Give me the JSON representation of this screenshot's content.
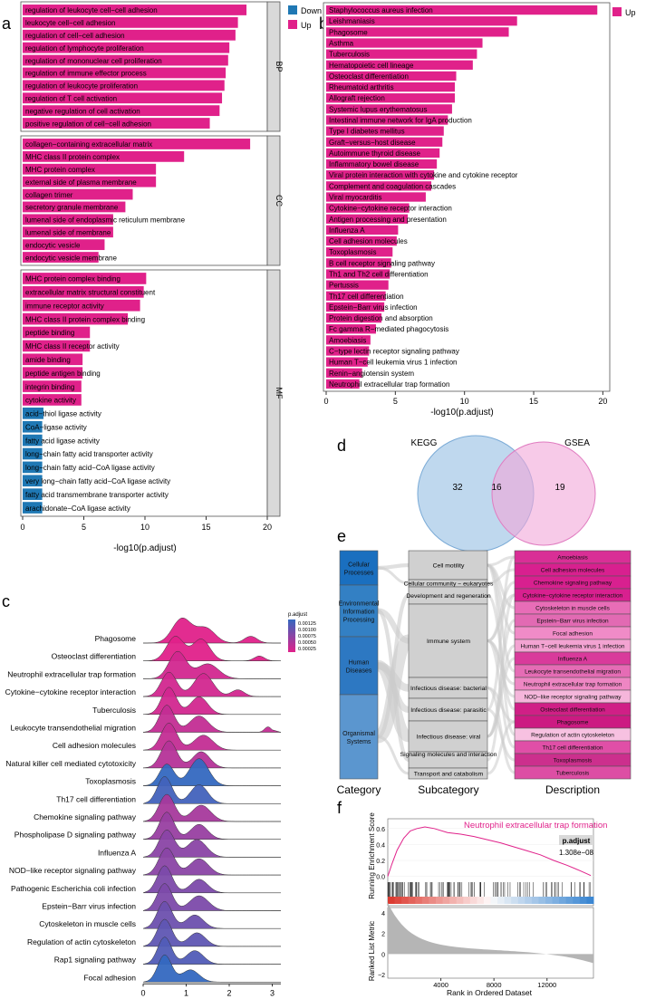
{
  "colors": {
    "down": "#1f78b4",
    "up": "#e0218a",
    "strip": "#d9d9d9",
    "kegg": "#a9cbe8",
    "gsea": "#f2a6d8"
  },
  "panel_labels": {
    "a": "a",
    "b": "b",
    "c": "c",
    "d": "d",
    "e": "e",
    "f": "f"
  },
  "chart_data": [
    {
      "id": "go_bar",
      "type": "bar",
      "title": "",
      "xlabel": "-log10(p.adjust)",
      "xlim": [
        0,
        20
      ],
      "xticks": [
        0,
        5,
        10,
        15,
        20
      ],
      "legend": {
        "placement": "top-right",
        "entries": [
          "Down",
          "Up"
        ]
      },
      "facets": [
        {
          "name": "BP",
          "terms": [
            {
              "label": "regulation of leukocyte cell−cell adhesion",
              "value": 18.3,
              "dir": "Up"
            },
            {
              "label": "leukocyte cell−cell adhesion",
              "value": 17.6,
              "dir": "Up"
            },
            {
              "label": "regulation of cell−cell adhesion",
              "value": 17.4,
              "dir": "Up"
            },
            {
              "label": "regulation of lymphocyte proliferation",
              "value": 16.9,
              "dir": "Up"
            },
            {
              "label": "regulation of mononuclear cell proliferation",
              "value": 16.8,
              "dir": "Up"
            },
            {
              "label": "regulation of immune effector process",
              "value": 16.6,
              "dir": "Up"
            },
            {
              "label": "regulation of leukocyte proliferation",
              "value": 16.5,
              "dir": "Up"
            },
            {
              "label": "regulation of T cell activation",
              "value": 16.3,
              "dir": "Up"
            },
            {
              "label": "negative regulation of cell activation",
              "value": 16.1,
              "dir": "Up"
            },
            {
              "label": "positive regulation of cell−cell adhesion",
              "value": 15.3,
              "dir": "Up"
            }
          ]
        },
        {
          "name": "CC",
          "terms": [
            {
              "label": "collagen−containing extracellular matrix",
              "value": 18.6,
              "dir": "Up"
            },
            {
              "label": "MHC class II protein complex",
              "value": 13.2,
              "dir": "Up"
            },
            {
              "label": "MHC protein complex",
              "value": 10.9,
              "dir": "Up"
            },
            {
              "label": "external side of plasma membrane",
              "value": 10.9,
              "dir": "Up"
            },
            {
              "label": "collagen trimer",
              "value": 9.0,
              "dir": "Up"
            },
            {
              "label": "secretory granule membrane",
              "value": 8.4,
              "dir": "Up"
            },
            {
              "label": "lumenal side of endoplasmic reticulum membrane",
              "value": 7.4,
              "dir": "Up"
            },
            {
              "label": "lumenal side of membrane",
              "value": 7.4,
              "dir": "Up"
            },
            {
              "label": "endocytic vesicle",
              "value": 6.7,
              "dir": "Up"
            },
            {
              "label": "endocytic vesicle membrane",
              "value": 6.2,
              "dir": "Up"
            }
          ]
        },
        {
          "name": "MF",
          "terms": [
            {
              "label": "MHC protein complex binding",
              "value": 10.1,
              "dir": "Up"
            },
            {
              "label": "extracellular matrix structural constituent",
              "value": 9.9,
              "dir": "Up"
            },
            {
              "label": "immune receptor activity",
              "value": 9.6,
              "dir": "Up"
            },
            {
              "label": "MHC class II protein complex binding",
              "value": 8.6,
              "dir": "Up"
            },
            {
              "label": "peptide binding",
              "value": 5.5,
              "dir": "Up"
            },
            {
              "label": "MHC class II receptor activity",
              "value": 5.5,
              "dir": "Up"
            },
            {
              "label": "amide binding",
              "value": 4.9,
              "dir": "Up"
            },
            {
              "label": "peptide antigen binding",
              "value": 4.9,
              "dir": "Up"
            },
            {
              "label": "integrin binding",
              "value": 4.8,
              "dir": "Up"
            },
            {
              "label": "cytokine activity",
              "value": 4.8,
              "dir": "Up"
            },
            {
              "label": "acid−thiol ligase activity",
              "value": 1.7,
              "dir": "Down"
            },
            {
              "label": "CoA−ligase activity",
              "value": 1.6,
              "dir": "Down"
            },
            {
              "label": "fatty acid ligase activity",
              "value": 1.6,
              "dir": "Down"
            },
            {
              "label": "long−chain fatty acid transporter activity",
              "value": 1.6,
              "dir": "Down"
            },
            {
              "label": "long−chain fatty acid−CoA ligase activity",
              "value": 1.6,
              "dir": "Down"
            },
            {
              "label": "very long−chain fatty acid−CoA ligase activity",
              "value": 1.6,
              "dir": "Down"
            },
            {
              "label": "fatty acid transmembrane transporter activity",
              "value": 1.6,
              "dir": "Down"
            },
            {
              "label": "arachidonate−CoA ligase activity",
              "value": 1.6,
              "dir": "Down"
            }
          ]
        }
      ]
    },
    {
      "id": "kegg_bar",
      "type": "bar",
      "xlabel": "-log10(p.adjust)",
      "xlim": [
        0,
        20
      ],
      "xticks": [
        0,
        5,
        10,
        15,
        20
      ],
      "legend": {
        "placement": "top-right",
        "entries": [
          "Up"
        ]
      },
      "terms": [
        {
          "label": "Staphylococcus aureus infection",
          "value": 19.6
        },
        {
          "label": "Leishmaniasis",
          "value": 13.8
        },
        {
          "label": "Phagosome",
          "value": 13.2
        },
        {
          "label": "Asthma",
          "value": 11.3
        },
        {
          "label": "Tuberculosis",
          "value": 10.9
        },
        {
          "label": "Hematopoietic cell lineage",
          "value": 10.6
        },
        {
          "label": "Osteoclast differentiation",
          "value": 9.4
        },
        {
          "label": "Rheumatoid arthritis",
          "value": 9.3
        },
        {
          "label": "Allograft rejection",
          "value": 9.3
        },
        {
          "label": "Systemic lupus erythematosus",
          "value": 9.1
        },
        {
          "label": "Intestinal immune network for IgA production",
          "value": 8.8
        },
        {
          "label": "Type I diabetes mellitus",
          "value": 8.5
        },
        {
          "label": "Graft−versus−host disease",
          "value": 8.4
        },
        {
          "label": "Autoimmune thyroid disease",
          "value": 8.2
        },
        {
          "label": "Inflammatory bowel disease",
          "value": 8.0
        },
        {
          "label": "Viral protein interaction with cytokine and cytokine receptor",
          "value": 7.8
        },
        {
          "label": "Complement and coagulation cascades",
          "value": 7.6
        },
        {
          "label": "Viral myocarditis",
          "value": 7.2
        },
        {
          "label": "Cytokine−cytokine receptor interaction",
          "value": 6.0
        },
        {
          "label": "Antigen processing and presentation",
          "value": 5.9
        },
        {
          "label": "Influenza A",
          "value": 5.2
        },
        {
          "label": "Cell adhesion molecules",
          "value": 5.1
        },
        {
          "label": "Toxoplasmosis",
          "value": 4.8
        },
        {
          "label": "B cell receptor signaling pathway",
          "value": 4.7
        },
        {
          "label": "Th1 and Th2 cell differentiation",
          "value": 4.6
        },
        {
          "label": "Pertussis",
          "value": 4.5
        },
        {
          "label": "Th17 cell differentiation",
          "value": 4.3
        },
        {
          "label": "Epstein−Barr virus infection",
          "value": 4.2
        },
        {
          "label": "Protein digestion and absorption",
          "value": 4.0
        },
        {
          "label": "Fc gamma R−mediated phagocytosis",
          "value": 3.6
        },
        {
          "label": "Amoebiasis",
          "value": 3.2
        },
        {
          "label": "C−type lectin receptor signaling pathway",
          "value": 3.1
        },
        {
          "label": "Human T−cell leukemia virus 1 infection",
          "value": 3.0
        },
        {
          "label": "Renin−angiotensin system",
          "value": 2.6
        },
        {
          "label": "Neutrophil extracellular trap formation",
          "value": 2.4
        }
      ]
    },
    {
      "id": "ridge",
      "type": "area",
      "xlim": [
        0,
        3.2
      ],
      "xticks": [
        0,
        1,
        2,
        3
      ],
      "legend": {
        "title": "p.adjust",
        "ticks": [
          "0.00125",
          "0.00100",
          "0.00075",
          "0.00050",
          "0.00025"
        ],
        "placement": "top-right"
      },
      "rows": [
        {
          "label": "Phagosome",
          "peaks": [
            [
              0.9,
              0.9,
              0.22
            ],
            [
              1.45,
              0.55,
              0.22
            ],
            [
              2.5,
              0.25,
              0.15
            ]
          ],
          "p": 0.0001
        },
        {
          "label": "Osteoclast differentiation",
          "peaks": [
            [
              0.75,
              0.9,
              0.2
            ],
            [
              1.35,
              0.8,
              0.2
            ],
            [
              2.7,
              0.18,
              0.12
            ]
          ],
          "p": 0.0001
        },
        {
          "label": "Neutrophil extracellular trap formation",
          "peaks": [
            [
              0.8,
              1.0,
              0.2
            ],
            [
              1.5,
              0.55,
              0.25
            ]
          ],
          "p": 0.0002
        },
        {
          "label": "Cytokine−cytokine receptor interaction",
          "peaks": [
            [
              0.6,
              0.9,
              0.18
            ],
            [
              1.4,
              0.85,
              0.22
            ],
            [
              2.2,
              0.25,
              0.15
            ]
          ],
          "p": 0.0002
        },
        {
          "label": "Tuberculosis",
          "peaks": [
            [
              0.6,
              1.0,
              0.17
            ],
            [
              1.3,
              0.65,
              0.2
            ]
          ],
          "p": 0.0002
        },
        {
          "label": "Leukocyte transendothelial migration",
          "peaks": [
            [
              0.55,
              1.0,
              0.17
            ],
            [
              1.3,
              0.6,
              0.22
            ],
            [
              2.9,
              0.2,
              0.08
            ]
          ],
          "p": 0.0003
        },
        {
          "label": "Cell adhesion molecules",
          "peaks": [
            [
              0.6,
              1.0,
              0.18
            ],
            [
              1.4,
              0.55,
              0.22
            ]
          ],
          "p": 0.0003
        },
        {
          "label": "Natural killer cell mediated cytotoxicity",
          "peaks": [
            [
              0.6,
              1.0,
              0.18
            ],
            [
              1.35,
              0.6,
              0.2
            ]
          ],
          "p": 0.0004
        },
        {
          "label": "Toxoplasmosis",
          "peaks": [
            [
              0.55,
              0.8,
              0.17
            ],
            [
              1.3,
              1.0,
              0.22
            ]
          ],
          "p": 0.0013
        },
        {
          "label": "Th17 cell differentiation",
          "peaks": [
            [
              0.5,
              1.0,
              0.17
            ],
            [
              1.3,
              0.7,
              0.2
            ]
          ],
          "p": 0.0012
        },
        {
          "label": "Chemokine signaling pathway",
          "peaks": [
            [
              0.55,
              1.0,
              0.18
            ],
            [
              1.35,
              0.6,
              0.22
            ]
          ],
          "p": 0.0005
        },
        {
          "label": "Phospholipase D signaling pathway",
          "peaks": [
            [
              0.55,
              1.0,
              0.17
            ],
            [
              1.3,
              0.55,
              0.2
            ]
          ],
          "p": 0.0006
        },
        {
          "label": "Influenza A",
          "peaks": [
            [
              0.55,
              1.0,
              0.18
            ],
            [
              1.25,
              0.65,
              0.22
            ]
          ],
          "p": 0.0007
        },
        {
          "label": "NOD−like receptor signaling pathway",
          "peaks": [
            [
              0.55,
              1.0,
              0.18
            ],
            [
              1.3,
              0.6,
              0.22
            ]
          ],
          "p": 0.0007
        },
        {
          "label": "Pathogenic Escherichia coli infection",
          "peaks": [
            [
              0.5,
              1.0,
              0.17
            ],
            [
              1.3,
              0.5,
              0.2
            ]
          ],
          "p": 0.0008
        },
        {
          "label": "Epstein−Barr virus infection",
          "peaks": [
            [
              0.5,
              1.0,
              0.17
            ],
            [
              1.3,
              0.55,
              0.22
            ]
          ],
          "p": 0.0008
        },
        {
          "label": "Cytoskeleton in muscle cells",
          "peaks": [
            [
              0.5,
              1.0,
              0.17
            ],
            [
              1.2,
              0.5,
              0.2
            ]
          ],
          "p": 0.0009
        },
        {
          "label": "Regulation of actin cytoskeleton",
          "peaks": [
            [
              0.5,
              1.0,
              0.17
            ],
            [
              1.25,
              0.5,
              0.2
            ]
          ],
          "p": 0.001
        },
        {
          "label": "Rap1 signaling pathway",
          "peaks": [
            [
              0.5,
              1.0,
              0.16
            ],
            [
              1.2,
              0.5,
              0.2
            ]
          ],
          "p": 0.0011
        },
        {
          "label": "Focal adhesion",
          "peaks": [
            [
              0.5,
              1.0,
              0.16
            ],
            [
              1.1,
              0.45,
              0.2
            ]
          ],
          "p": 0.0013
        }
      ]
    },
    {
      "id": "venn",
      "type": "venn",
      "sets": [
        "KEGG",
        "GSEA"
      ],
      "counts": {
        "kegg_only": 32,
        "both": 16,
        "gsea_only": 19
      }
    },
    {
      "id": "sankey",
      "type": "sankey",
      "axis_labels": [
        "Category",
        "Subcategory",
        "Description"
      ],
      "categories": [
        "Cellular Processes",
        "Environmental Information Processing",
        "Human Diseases",
        "Organismal Systems"
      ],
      "subcategories": [
        "Cell motility",
        "Cellular community − eukaryotes",
        "Development and regeneration",
        "Immune system",
        "Infectious disease: bacterial",
        "Infectious disease: parasitic",
        "Infectious disease: viral",
        "Signaling molecules and interaction",
        "Transport and catabolism"
      ],
      "descriptions": [
        "Amoebiasis",
        "Cell adhesion molecules",
        "Chemokine signaling pathway",
        "Cytokine−cytokine receptor interaction",
        "Cytoskeleton in muscle cells",
        "Epstein−Barr virus infection",
        "Focal adhesion",
        "Human T−cell leukemia virus 1 infection",
        "Influenza A",
        "Leukocyte transendothelial migration",
        "Neutrophil extracellular trap formation",
        "NOD−like receptor signaling pathway",
        "Osteoclast differentiation",
        "Phagosome",
        "Regulation of actin cytoskeleton",
        "Th17 cell differentiation",
        "Toxoplasmosis",
        "Tuberculosis"
      ]
    },
    {
      "id": "gsea",
      "type": "line",
      "title": "Neutrophil extracellular trap formation",
      "ylabel_top": "Running Enrichment Score",
      "ylabel_bottom": "Ranked List Metric",
      "xlabel": "Rank in Ordered Dataset",
      "xlim": [
        0,
        15500
      ],
      "xticks": [
        4000,
        8000,
        12000
      ],
      "ylim_top": [
        -0.05,
        0.7
      ],
      "yticks_top": [
        "0.6",
        "0.4",
        "0.2",
        "0.0"
      ],
      "yticks_bottom": [
        "4",
        "2",
        "0",
        "−2"
      ],
      "padjust_label": "p.adjust",
      "padjust_value": "1.308e−08",
      "es_curve": [
        [
          0,
          0
        ],
        [
          300,
          0.15
        ],
        [
          700,
          0.33
        ],
        [
          1200,
          0.48
        ],
        [
          1700,
          0.57
        ],
        [
          2200,
          0.6
        ],
        [
          2800,
          0.62
        ],
        [
          3500,
          0.6
        ],
        [
          4500,
          0.55
        ],
        [
          5500,
          0.53
        ],
        [
          6500,
          0.5
        ],
        [
          7500,
          0.46
        ],
        [
          8500,
          0.42
        ],
        [
          9500,
          0.37
        ],
        [
          10500,
          0.32
        ],
        [
          11500,
          0.27
        ],
        [
          12500,
          0.2
        ],
        [
          13500,
          0.14
        ],
        [
          14500,
          0.07
        ],
        [
          15300,
          0.01
        ]
      ]
    }
  ]
}
